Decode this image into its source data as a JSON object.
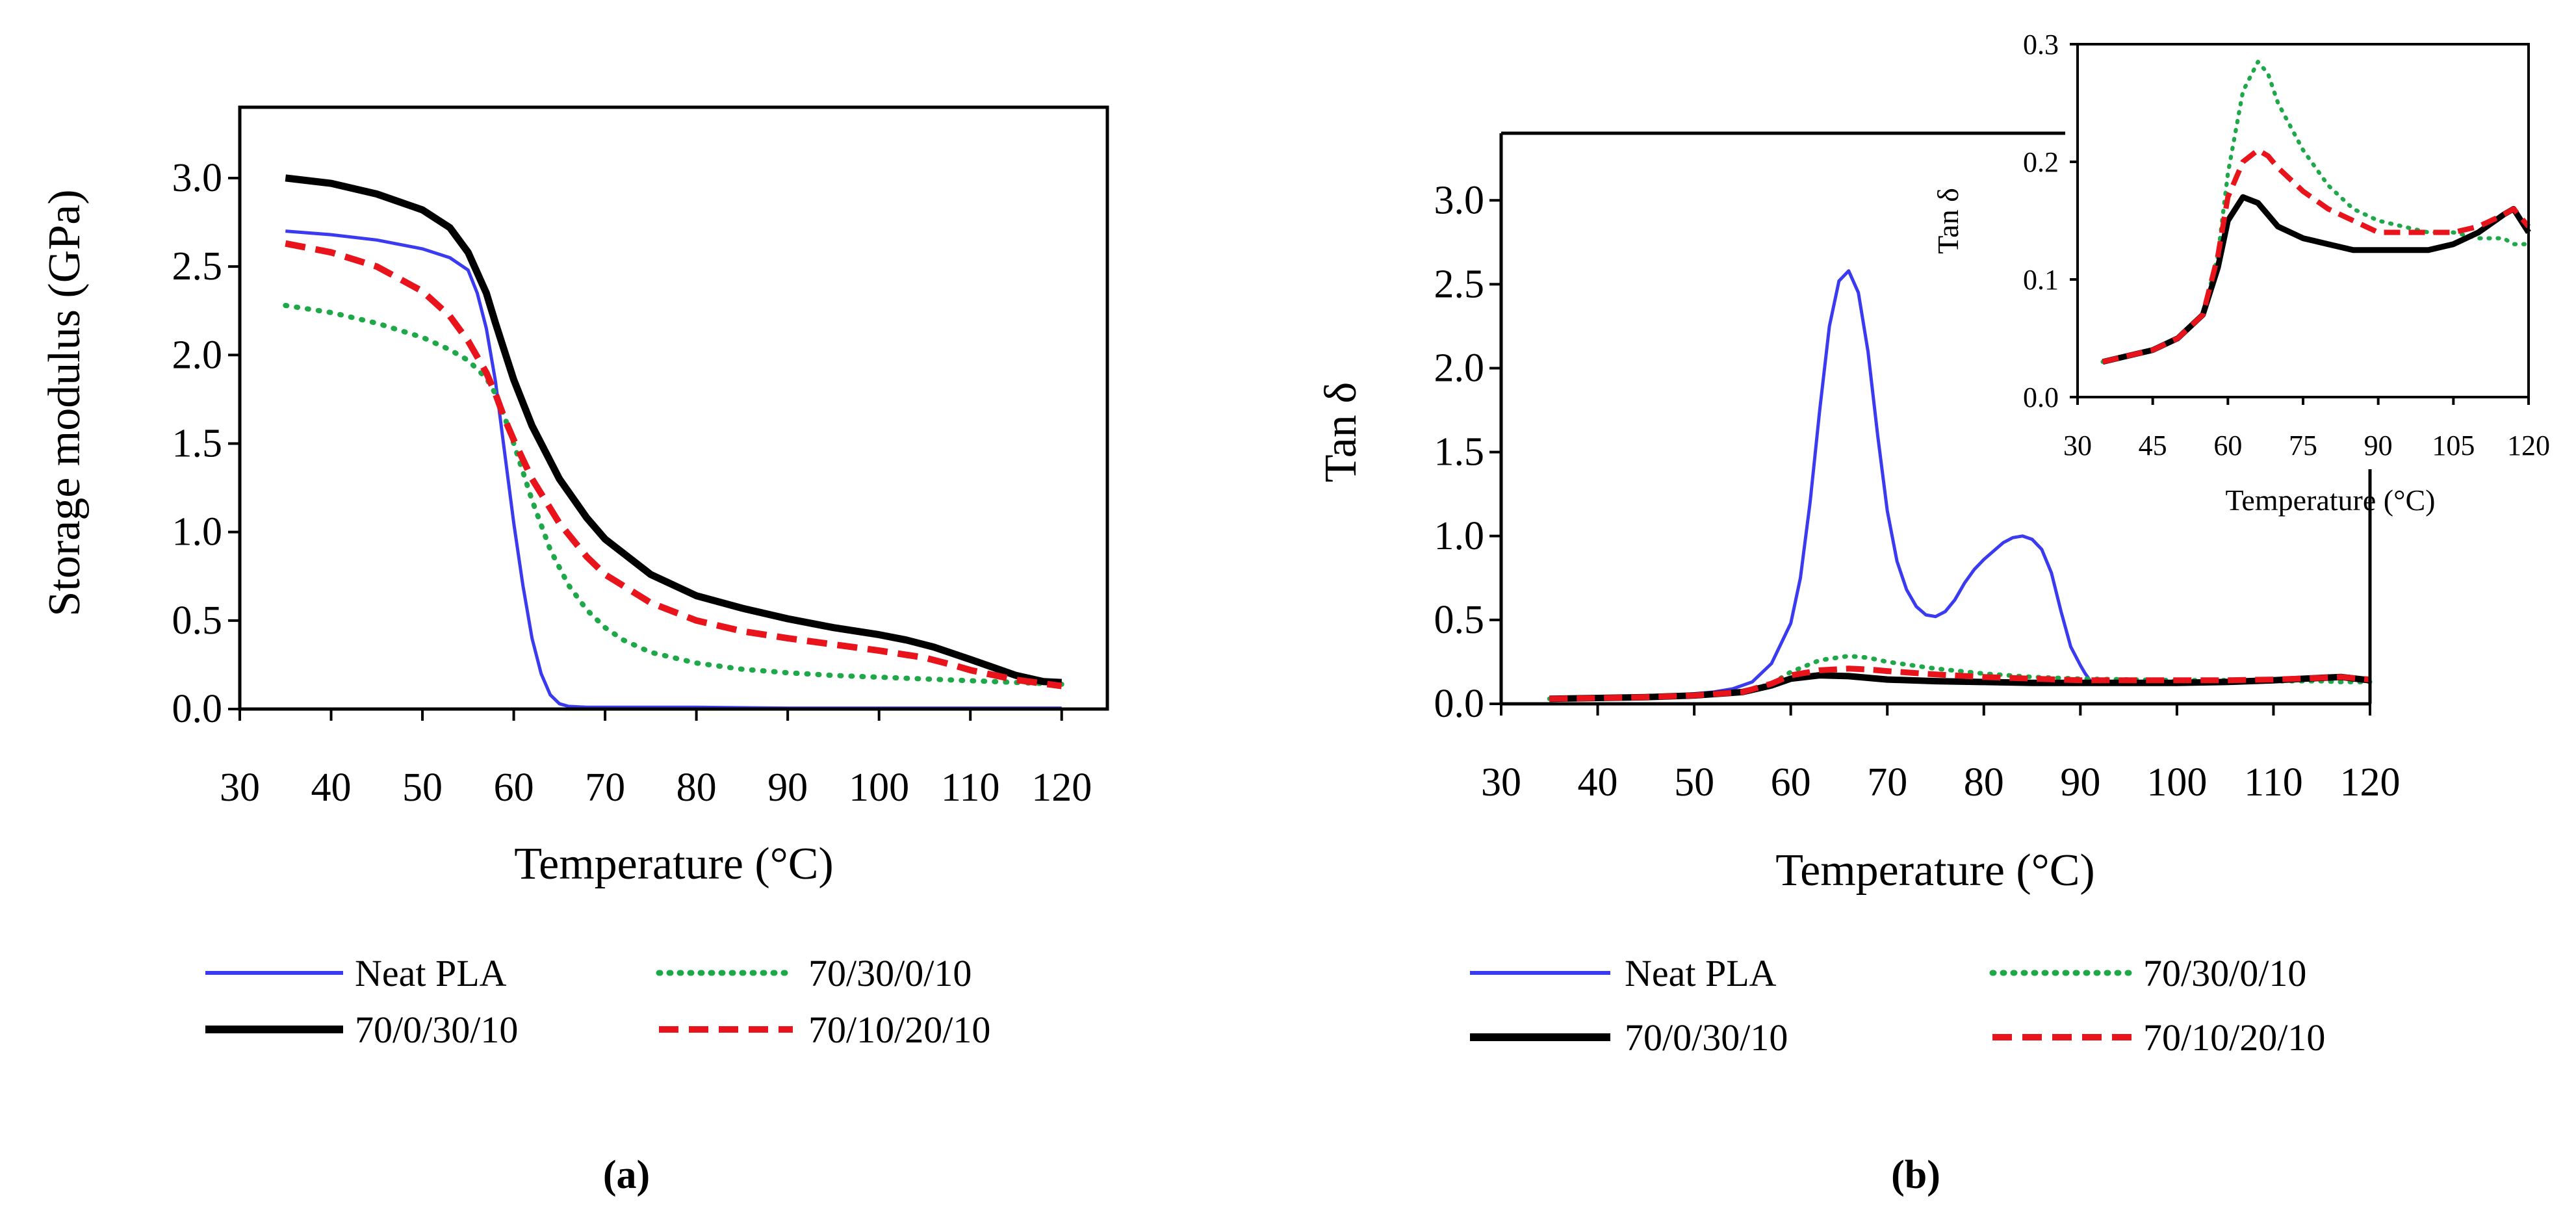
{
  "chart_data": [
    {
      "id": "a",
      "type": "line",
      "caption": "(a)",
      "title": "",
      "xlabel": "Temperature (°C)",
      "ylabel": "Storage modulus (GPa)",
      "xlim": [
        30,
        125
      ],
      "ylim": [
        0,
        3.4
      ],
      "xticks": [
        30,
        40,
        50,
        60,
        70,
        80,
        90,
        100,
        110,
        120
      ],
      "yticks": [
        0.0,
        0.5,
        1.0,
        1.5,
        2.0,
        2.5,
        3.0
      ],
      "ytick_labels": [
        "0.0",
        "0.5",
        "1.0",
        "1.5",
        "2.0",
        "2.5",
        "3.0"
      ],
      "grid": false,
      "legend_position": "bottom",
      "series": [
        {
          "name": "Neat PLA",
          "color": "#3a3af0",
          "style": "solid",
          "width": 5,
          "x": [
            35,
            40,
            45,
            50,
            53,
            55,
            56,
            57,
            58,
            59,
            60,
            61,
            62,
            63,
            64,
            65,
            66,
            68,
            70,
            80,
            90,
            100,
            110,
            120
          ],
          "y": [
            2.7,
            2.68,
            2.65,
            2.6,
            2.55,
            2.48,
            2.35,
            2.15,
            1.85,
            1.45,
            1.05,
            0.7,
            0.4,
            0.2,
            0.08,
            0.03,
            0.015,
            0.01,
            0.01,
            0.01,
            0.005,
            0.005,
            0.005,
            0.005
          ]
        },
        {
          "name": "70/30/0/10",
          "color": "#1fa84a",
          "style": "dotted",
          "width": 8,
          "x": [
            35,
            40,
            45,
            50,
            53,
            55,
            57,
            58,
            59,
            60,
            62,
            64,
            66,
            68,
            70,
            72,
            75,
            80,
            85,
            90,
            95,
            100,
            105,
            110,
            115,
            120
          ],
          "y": [
            2.28,
            2.24,
            2.18,
            2.1,
            2.03,
            1.97,
            1.87,
            1.78,
            1.65,
            1.5,
            1.18,
            0.9,
            0.7,
            0.56,
            0.46,
            0.39,
            0.32,
            0.26,
            0.225,
            0.205,
            0.19,
            0.18,
            0.17,
            0.16,
            0.15,
            0.14
          ]
        },
        {
          "name": "70/0/30/10",
          "color": "#000000",
          "style": "solid",
          "width": 11,
          "x": [
            35,
            40,
            45,
            50,
            53,
            55,
            57,
            58,
            59,
            60,
            62,
            65,
            68,
            70,
            75,
            80,
            85,
            90,
            95,
            100,
            103,
            106,
            110,
            115,
            118,
            120
          ],
          "y": [
            3.0,
            2.97,
            2.91,
            2.82,
            2.72,
            2.58,
            2.35,
            2.18,
            2.02,
            1.86,
            1.6,
            1.3,
            1.08,
            0.96,
            0.76,
            0.64,
            0.57,
            0.51,
            0.46,
            0.42,
            0.39,
            0.35,
            0.28,
            0.19,
            0.155,
            0.15
          ]
        },
        {
          "name": "70/10/20/10",
          "color": "#e8131b",
          "style": "dashed",
          "width": 10,
          "x": [
            35,
            40,
            45,
            50,
            53,
            55,
            57,
            58,
            59,
            60,
            62,
            65,
            68,
            70,
            75,
            80,
            85,
            90,
            95,
            100,
            105,
            108,
            110,
            115,
            120
          ],
          "y": [
            2.63,
            2.58,
            2.5,
            2.36,
            2.22,
            2.08,
            1.9,
            1.78,
            1.64,
            1.52,
            1.3,
            1.05,
            0.86,
            0.76,
            0.6,
            0.5,
            0.44,
            0.4,
            0.365,
            0.33,
            0.29,
            0.25,
            0.22,
            0.165,
            0.13
          ]
        }
      ]
    },
    {
      "id": "b",
      "type": "line",
      "caption": "(b)",
      "title": "",
      "xlabel": "Temperature (°C)",
      "ylabel": "Tan δ",
      "xlim": [
        30,
        120
      ],
      "ylim": [
        0,
        3.4
      ],
      "xticks": [
        30,
        40,
        50,
        60,
        70,
        80,
        90,
        100,
        110,
        120
      ],
      "yticks": [
        0.0,
        0.5,
        1.0,
        1.5,
        2.0,
        2.5,
        3.0
      ],
      "ytick_labels": [
        "0.0",
        "0.5",
        "1.0",
        "1.5",
        "2.0",
        "2.5",
        "3.0"
      ],
      "grid": false,
      "legend_position": "bottom",
      "series": [
        {
          "name": "Neat PLA",
          "color": "#3a3af0",
          "style": "solid",
          "width": 5,
          "x": [
            35,
            40,
            45,
            50,
            52,
            54,
            56,
            58,
            60,
            61,
            62,
            63,
            64,
            65,
            66,
            67,
            68,
            69,
            70,
            71,
            72,
            73,
            74,
            75,
            76,
            77,
            78,
            79,
            80,
            81,
            82,
            83,
            84,
            85,
            86,
            87,
            88,
            89,
            90,
            90.5,
            91
          ],
          "y": [
            0.03,
            0.035,
            0.04,
            0.06,
            0.07,
            0.09,
            0.13,
            0.24,
            0.48,
            0.75,
            1.2,
            1.75,
            2.25,
            2.52,
            2.58,
            2.45,
            2.1,
            1.6,
            1.15,
            0.85,
            0.68,
            0.58,
            0.53,
            0.52,
            0.55,
            0.62,
            0.72,
            0.8,
            0.86,
            0.91,
            0.96,
            0.99,
            1.0,
            0.98,
            0.92,
            0.78,
            0.55,
            0.34,
            0.23,
            0.18,
            0.14
          ]
        },
        {
          "name": "70/30/0/10",
          "color": "#1fa84a",
          "style": "dotted",
          "width": 7,
          "x": [
            35,
            40,
            45,
            50,
            55,
            58,
            60,
            63,
            66,
            68,
            70,
            75,
            80,
            85,
            90,
            95,
            100,
            105,
            110,
            115,
            117,
            120
          ],
          "y": [
            0.03,
            0.035,
            0.04,
            0.05,
            0.07,
            0.12,
            0.19,
            0.26,
            0.285,
            0.275,
            0.25,
            0.21,
            0.18,
            0.16,
            0.15,
            0.145,
            0.14,
            0.14,
            0.135,
            0.135,
            0.13,
            0.13
          ]
        },
        {
          "name": "70/0/30/10",
          "color": "#000000",
          "style": "solid",
          "width": 10,
          "x": [
            35,
            40,
            45,
            50,
            55,
            58,
            60,
            63,
            66,
            68,
            70,
            75,
            80,
            85,
            90,
            95,
            100,
            105,
            110,
            115,
            117,
            120
          ],
          "y": [
            0.03,
            0.035,
            0.04,
            0.05,
            0.07,
            0.11,
            0.15,
            0.17,
            0.165,
            0.155,
            0.145,
            0.135,
            0.13,
            0.125,
            0.125,
            0.125,
            0.125,
            0.13,
            0.14,
            0.155,
            0.16,
            0.14
          ]
        },
        {
          "name": "70/10/20/10",
          "color": "#e8131b",
          "style": "dashed",
          "width": 9,
          "x": [
            35,
            40,
            45,
            50,
            55,
            58,
            60,
            63,
            66,
            68,
            70,
            75,
            80,
            85,
            90,
            95,
            100,
            105,
            110,
            115,
            117,
            120
          ],
          "y": [
            0.03,
            0.035,
            0.04,
            0.05,
            0.07,
            0.12,
            0.17,
            0.2,
            0.21,
            0.205,
            0.195,
            0.175,
            0.16,
            0.15,
            0.14,
            0.14,
            0.14,
            0.14,
            0.145,
            0.155,
            0.16,
            0.145
          ]
        }
      ],
      "inset": {
        "xlabel": "Temperature (°C)",
        "ylabel": "Tan δ",
        "xlim": [
          30,
          120
        ],
        "ylim": [
          0,
          0.3
        ],
        "xticks": [
          30,
          45,
          60,
          75,
          90,
          105,
          120
        ],
        "yticks": [
          0.0,
          0.1,
          0.2,
          0.3
        ],
        "ytick_labels": [
          "0.0",
          "0.1",
          "0.2",
          "0.3"
        ]
      }
    }
  ]
}
